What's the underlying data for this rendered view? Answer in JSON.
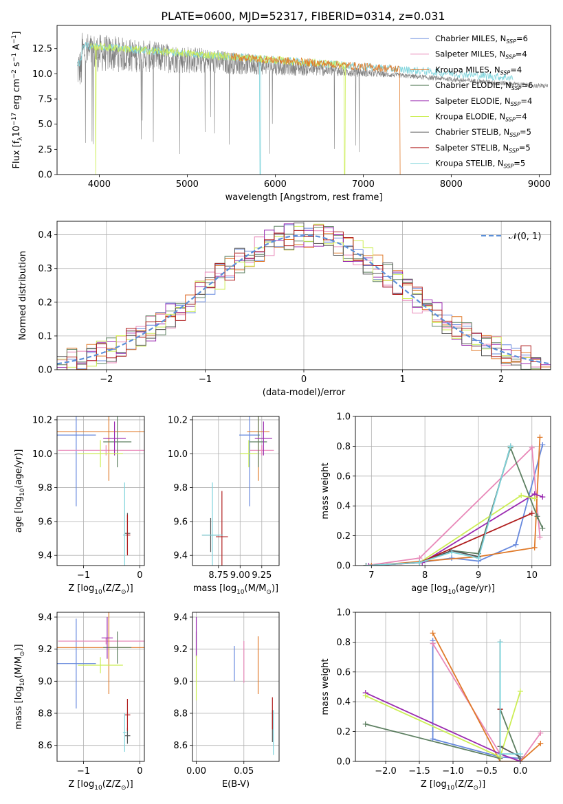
{
  "figure": {
    "title": "PLATE=0600, MJD=52317, FIBERID=0314, z=0.031"
  },
  "colors": {
    "c1": "#6688dd",
    "c2": "#e887b8",
    "c3": "#e07a2a",
    "c4": "#5e8062",
    "c5": "#9a2ab0",
    "c6": "#ccee55",
    "c7": "#555555",
    "c8": "#b01e1e",
    "c9": "#7fd4dc",
    "normal": "#5b8fd9"
  },
  "chart_data": [
    {
      "type": "line",
      "name": "spectrum",
      "xlabel": "wavelength [Angstrom, rest frame]",
      "ylabel": "Flux [f$_\\lambda$10$^{-17}$ erg cm$^{-2}$ s$^{-1}$ A$^{-1}$]",
      "xlim": [
        3520,
        9130
      ],
      "ylim": [
        0,
        14.8
      ],
      "xticks": [
        4000,
        5000,
        6000,
        7000,
        8000,
        9000
      ],
      "yticks": [
        0.0,
        2.5,
        5.0,
        7.5,
        10.0,
        12.5
      ],
      "ytick_labels": [
        "0.0",
        "2.5",
        "5.0",
        "7.5",
        "10.0",
        "12.5"
      ],
      "legend_position": "top-right",
      "legend": [
        {
          "text": "Chabrier MILES, N",
          "sub": "SSP",
          "n": "=6"
        },
        {
          "text": "Salpeter MILES, N",
          "sub": "SSP",
          "n": "=4"
        },
        {
          "text": "Kroupa MILES, N",
          "sub": "SSP",
          "n": "=4"
        },
        {
          "text": "Chabrier ELODIE, N",
          "sub": "SSP",
          "n": "=6"
        },
        {
          "text": "Salpeter ELODIE, N",
          "sub": "SSP",
          "n": "=4"
        },
        {
          "text": "Kroupa ELODIE, N",
          "sub": "SSP",
          "n": "=4"
        },
        {
          "text": "Chabrier STELIB, N",
          "sub": "SSP",
          "n": "=5"
        },
        {
          "text": "Salpeter STELIB, N",
          "sub": "SSP",
          "n": "=5"
        },
        {
          "text": "Kroupa STELIB, N",
          "sub": "SSP",
          "n": "=5"
        }
      ],
      "series": [
        {
          "name": "data",
          "wave_range": [
            3750,
            9100
          ],
          "level_blue": 11.5,
          "level_red": 8.5,
          "noise_blue": 2.0,
          "noise_red": 0.3
        },
        {
          "name": "Kroupa STELIB",
          "wave_range": [
            3750,
            8700
          ],
          "level_blue": 12.5,
          "level_red": 8.5
        },
        {
          "name": "Kroupa ELODIE",
          "wave_range": [
            3900,
            6800
          ],
          "level_blue": 12.8,
          "level_red": 9.3
        },
        {
          "name": "Salpeter STELIB",
          "wave_range": [
            5500,
            7420
          ],
          "level_blue": 10.0,
          "level_red": 10.0
        }
      ]
    },
    {
      "type": "bar",
      "name": "residual-histogram",
      "xlabel": "(data-model)/error",
      "ylabel": "Normed distribution",
      "xlim": [
        -2.5,
        2.5
      ],
      "ylim": [
        0,
        0.44
      ],
      "xticks": [
        -2,
        -1,
        0,
        1,
        2
      ],
      "yticks": [
        0.0,
        0.1,
        0.2,
        0.3,
        0.4
      ],
      "ytick_labels": [
        "0.0",
        "0.1",
        "0.2",
        "0.3",
        "0.4"
      ],
      "bin_width": 0.1,
      "reference_curve": {
        "label": "𝒩(0, 1)",
        "mean": 0,
        "sigma": 1
      }
    },
    {
      "type": "scatter",
      "name": "age-vs-Z",
      "xlabel": "Z [log$_{10}$(Z/Z$_\\odot$)]",
      "ylabel": "age  [log$_{10}$(age/yr)]",
      "xlim": [
        -1.47,
        0.08
      ],
      "ylim": [
        9.34,
        10.22
      ],
      "xticks": [
        -1,
        0
      ],
      "yticks": [
        9.4,
        9.6,
        9.8,
        10.0,
        10.2
      ],
      "ytick_labels": [
        "9.4",
        "9.6",
        "9.8",
        "10.0",
        "10.2"
      ],
      "points": [
        {
          "series": 1,
          "x": -1.13,
          "y": 10.11,
          "xerr": 0.35,
          "yerr": 0.42
        },
        {
          "series": 2,
          "x": -0.6,
          "y": 10.02,
          "xerr": 0.85,
          "yerr": 0.03
        },
        {
          "series": 3,
          "x": -0.55,
          "y": 10.13,
          "xerr": 1.0,
          "yerr": 0.29
        },
        {
          "series": 4,
          "x": -0.4,
          "y": 10.07,
          "xerr": 0.25,
          "yerr": 0.15
        },
        {
          "series": 5,
          "x": -0.45,
          "y": 10.09,
          "xerr": 0.2,
          "yerr": 0.1
        },
        {
          "series": 6,
          "x": -0.7,
          "y": 10.0,
          "xerr": 0.4,
          "yerr": 0.08
        },
        {
          "series": 7,
          "x": -0.22,
          "y": 9.53,
          "xerr": 0.05,
          "yerr": 0.12
        },
        {
          "series": 8,
          "x": -0.22,
          "y": 9.52,
          "xerr": 0.05,
          "yerr": 0.12
        },
        {
          "series": 9,
          "x": -0.27,
          "y": 9.52,
          "xerr": 0.03,
          "yerr": 0.31
        }
      ]
    },
    {
      "type": "scatter",
      "name": "age-vs-mass",
      "xlabel": "mass [log$_{10}$(M/M$_\\odot$)]",
      "ylabel": "",
      "xlim": [
        8.45,
        9.45
      ],
      "ylim": [
        9.34,
        10.22
      ],
      "xticks": [
        8.75,
        9.0,
        9.25
      ],
      "xtick_labels": [
        "8.75",
        "9.00",
        "9.25"
      ],
      "yticks": [
        9.4,
        9.6,
        9.8,
        10.0,
        10.2
      ],
      "ytick_labels": [
        "9.4",
        "9.6",
        "9.8",
        "10.0",
        "10.2"
      ],
      "points": [
        {
          "series": 1,
          "x": 9.11,
          "y": 10.11,
          "xerr": 0.12,
          "yerr": 0.42
        },
        {
          "series": 2,
          "x": 9.25,
          "y": 10.02,
          "xerr": 0.14,
          "yerr": 0.03
        },
        {
          "series": 3,
          "x": 9.21,
          "y": 10.13,
          "xerr": 0.13,
          "yerr": 0.29
        },
        {
          "series": 4,
          "x": 9.21,
          "y": 10.07,
          "xerr": 0.1,
          "yerr": 0.15
        },
        {
          "series": 5,
          "x": 9.27,
          "y": 10.09,
          "xerr": 0.1,
          "yerr": 0.1
        },
        {
          "series": 6,
          "x": 9.1,
          "y": 10.0,
          "xerr": 0.1,
          "yerr": 0.08
        },
        {
          "series": 7,
          "x": 8.66,
          "y": 9.52,
          "xerr": 0.1,
          "yerr": 0.1
        },
        {
          "series": 8,
          "x": 8.79,
          "y": 9.51,
          "xerr": 0.07,
          "yerr": 0.27
        },
        {
          "series": 9,
          "x": 8.68,
          "y": 9.52,
          "xerr": 0.12,
          "yerr": 0.31
        }
      ]
    },
    {
      "type": "line",
      "name": "mass-weight-vs-age",
      "xlabel": "age  [log$_{10}$(age/yr)]",
      "ylabel": "mass weight",
      "xlim": [
        6.7,
        10.35
      ],
      "ylim": [
        0,
        1.0
      ],
      "xticks": [
        7,
        8,
        9,
        10
      ],
      "yticks": [
        0.0,
        0.2,
        0.4,
        0.6,
        0.8,
        1.0
      ],
      "ytick_labels": [
        "0.0",
        "0.2",
        "0.4",
        "0.6",
        "0.8",
        "1.0"
      ],
      "series": [
        {
          "series": 1,
          "x": [
            6.9,
            7.9,
            8.5,
            9.0,
            9.7,
            10.2
          ],
          "y": [
            0.0,
            0.02,
            0.05,
            0.03,
            0.14,
            0.81
          ]
        },
        {
          "series": 2,
          "x": [
            6.9,
            7.9,
            10.0,
            10.15
          ],
          "y": [
            0.0,
            0.05,
            0.79,
            0.19
          ]
        },
        {
          "series": 3,
          "x": [
            7.0,
            9.0,
            10.05,
            10.15
          ],
          "y": [
            0.0,
            0.06,
            0.12,
            0.86
          ]
        },
        {
          "series": 4,
          "x": [
            6.9,
            7.9,
            8.5,
            9.0,
            9.6,
            10.1,
            10.2
          ],
          "y": [
            0.0,
            0.02,
            0.1,
            0.08,
            0.79,
            0.33,
            0.25
          ]
        },
        {
          "series": 5,
          "x": [
            6.95,
            7.95,
            10.05,
            10.2
          ],
          "y": [
            0.0,
            0.02,
            0.48,
            0.46
          ]
        },
        {
          "series": 6,
          "x": [
            6.9,
            7.9,
            9.8,
            10.05
          ],
          "y": [
            0.0,
            0.02,
            0.47,
            0.45
          ]
        },
        {
          "series": 7,
          "x": [
            6.9,
            7.9,
            8.5,
            9.0,
            9.6
          ],
          "y": [
            0.0,
            0.02,
            0.1,
            0.06,
            0.8
          ]
        },
        {
          "series": 8,
          "x": [
            6.9,
            7.9,
            10.0
          ],
          "y": [
            0.0,
            0.02,
            0.35
          ]
        },
        {
          "series": 9,
          "x": [
            6.9,
            7.9,
            8.5,
            9.0,
            9.6
          ],
          "y": [
            0.0,
            0.02,
            0.09,
            0.05,
            0.8
          ]
        }
      ]
    },
    {
      "type": "scatter",
      "name": "mass-vs-Z",
      "xlabel": "Z [log$_{10}$(Z/Z$_\\odot$)]",
      "ylabel": "mass [log$_{10}$(M/M$_\\odot$)]",
      "xlim": [
        -1.47,
        0.08
      ],
      "ylim": [
        8.5,
        9.43
      ],
      "xticks": [
        -1,
        0
      ],
      "yticks": [
        8.6,
        8.8,
        9.0,
        9.2,
        9.4
      ],
      "ytick_labels": [
        "8.6",
        "8.8",
        "9.0",
        "9.2",
        "9.4"
      ],
      "points": [
        {
          "series": 1,
          "x": -1.13,
          "y": 9.11,
          "xerr": 0.35,
          "yerr": 0.28
        },
        {
          "series": 2,
          "x": -0.6,
          "y": 9.25,
          "xerr": 0.85,
          "yerr": 0.02
        },
        {
          "series": 3,
          "x": -0.55,
          "y": 9.21,
          "xerr": 1.0,
          "yerr": 0.29
        },
        {
          "series": 4,
          "x": -0.4,
          "y": 9.21,
          "xerr": 0.25,
          "yerr": 0.1
        },
        {
          "series": 5,
          "x": -0.58,
          "y": 9.27,
          "xerr": 0.1,
          "yerr": 0.13
        },
        {
          "series": 6,
          "x": -0.7,
          "y": 9.1,
          "xerr": 0.4,
          "yerr": 0.05
        },
        {
          "series": 7,
          "x": -0.22,
          "y": 8.66,
          "xerr": 0.05,
          "yerr": 0.05
        },
        {
          "series": 8,
          "x": -0.22,
          "y": 8.79,
          "xerr": 0.05,
          "yerr": 0.1
        },
        {
          "series": 9,
          "x": -0.27,
          "y": 8.68,
          "xerr": 0.03,
          "yerr": 0.12
        }
      ]
    },
    {
      "type": "scatter",
      "name": "mass-vs-EBV",
      "xlabel": "E(B-V)",
      "ylabel": "",
      "xlim": [
        -0.004,
        0.087
      ],
      "ylim": [
        8.5,
        9.43
      ],
      "xticks": [
        0.0,
        0.05
      ],
      "xtick_labels": [
        "0.00",
        "0.05"
      ],
      "yticks": [
        8.6,
        8.8,
        9.0,
        9.2,
        9.4
      ],
      "ytick_labels": [
        "8.6",
        "8.8",
        "9.0",
        "9.2",
        "9.4"
      ],
      "points": [
        {
          "series": 1,
          "x": 0.04,
          "y": 9.11,
          "yerr": 0.11
        },
        {
          "series": 2,
          "x": 0.05,
          "y": 9.12,
          "yerr": 0.13
        },
        {
          "series": 3,
          "x": 0.065,
          "y": 9.1,
          "yerr": 0.18
        },
        {
          "series": 4,
          "x": 0.0,
          "y": 9.23,
          "yerr": 0.08
        },
        {
          "series": 5,
          "x": 0.0,
          "y": 9.28,
          "yerr": 0.12
        },
        {
          "series": 6,
          "x": 0.0,
          "y": 9.02,
          "yerr": 0.14
        },
        {
          "series": 7,
          "x": 0.08,
          "y": 8.72,
          "yerr": 0.1
        },
        {
          "series": 8,
          "x": 0.08,
          "y": 8.8,
          "yerr": 0.1
        },
        {
          "series": 9,
          "x": 0.081,
          "y": 8.68,
          "yerr": 0.14
        }
      ]
    },
    {
      "type": "line",
      "name": "mass-weight-vs-Z",
      "xlabel": "Z [log$_{10}$(Z/Z$_\\odot$)]",
      "ylabel": "mass weight",
      "xlim": [
        -2.45,
        0.45
      ],
      "ylim": [
        0,
        1.0
      ],
      "xticks": [
        -2.0,
        -1.5,
        -1.0,
        -0.5,
        0.0
      ],
      "xtick_labels": [
        "−2.0",
        "−1.5",
        "−1.0",
        "−0.5",
        "0.0"
      ],
      "yticks": [
        0.0,
        0.2,
        0.4,
        0.6,
        0.8,
        1.0
      ],
      "ytick_labels": [
        "0.0",
        "0.2",
        "0.4",
        "0.6",
        "0.8",
        "1.0"
      ],
      "series": [
        {
          "series": 1,
          "x": [
            -1.3,
            -1.3,
            -0.3,
            0.0
          ],
          "y": [
            0.81,
            0.15,
            0.03,
            0.02
          ]
        },
        {
          "series": 2,
          "x": [
            -1.3,
            -0.3,
            0.0,
            0.3
          ],
          "y": [
            0.79,
            0.05,
            0.0,
            0.19
          ]
        },
        {
          "series": 3,
          "x": [
            -1.3,
            -0.3,
            0.0,
            0.3
          ],
          "y": [
            0.86,
            0.0,
            0.0,
            0.12
          ]
        },
        {
          "series": 4,
          "x": [
            -2.3,
            -0.3,
            -0.3,
            0.0
          ],
          "y": [
            0.25,
            0.02,
            0.35,
            0.0
          ]
        },
        {
          "series": 5,
          "x": [
            -2.3,
            -0.3,
            0.0
          ],
          "y": [
            0.46,
            0.05,
            0.0
          ]
        },
        {
          "series": 6,
          "x": [
            -2.3,
            -0.3,
            0.0
          ],
          "y": [
            0.44,
            0.03,
            0.47
          ]
        },
        {
          "series": 7,
          "x": [
            -0.3,
            -0.3,
            0.0
          ],
          "y": [
            0.8,
            0.1,
            0.03
          ]
        },
        {
          "series": 8,
          "x": [
            -0.3,
            -0.3
          ],
          "y": [
            0.35,
            0.05
          ]
        },
        {
          "series": 9,
          "x": [
            -0.3,
            -0.3,
            0.0
          ],
          "y": [
            0.8,
            0.05,
            0.05
          ]
        }
      ]
    }
  ]
}
